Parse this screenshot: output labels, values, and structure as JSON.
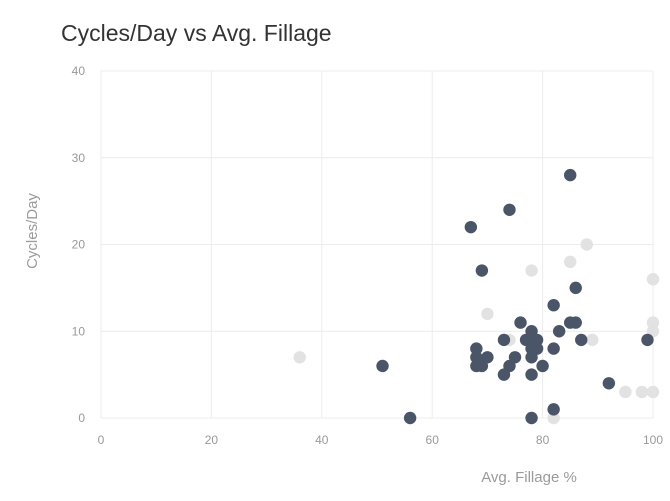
{
  "chart_data": {
    "type": "scatter",
    "title": "Cycles/Day vs Avg. Fillage",
    "xlabel": "Avg. Fillage %",
    "ylabel": "Cycles/Day",
    "xlim": [
      0,
      100
    ],
    "ylim": [
      0,
      40
    ],
    "x_ticks": [
      0,
      20,
      40,
      60,
      80,
      100
    ],
    "y_ticks": [
      0,
      10,
      20,
      30,
      40
    ],
    "grid": true,
    "legend": "none",
    "colors": {
      "dark": "#4a5568",
      "light": "#e2e2e2",
      "grid": "#ececec",
      "text": "#333333"
    },
    "series": [
      {
        "color_key": "light",
        "points": [
          [
            36,
            7
          ],
          [
            70,
            12
          ],
          [
            74,
            9
          ],
          [
            78,
            17
          ],
          [
            82,
            0
          ],
          [
            85,
            18
          ],
          [
            88,
            20
          ],
          [
            89,
            9
          ],
          [
            95,
            3
          ],
          [
            98,
            3
          ],
          [
            100,
            3
          ],
          [
            100,
            10
          ],
          [
            100,
            11
          ],
          [
            100,
            16
          ],
          [
            79,
            8
          ]
        ]
      },
      {
        "color_key": "dark",
        "points": [
          [
            51,
            6
          ],
          [
            56,
            0
          ],
          [
            67,
            22
          ],
          [
            68,
            6
          ],
          [
            68,
            7
          ],
          [
            68,
            8
          ],
          [
            69,
            17
          ],
          [
            69,
            6
          ],
          [
            70,
            7
          ],
          [
            73,
            5
          ],
          [
            73,
            9
          ],
          [
            74,
            6
          ],
          [
            74,
            24
          ],
          [
            75,
            7
          ],
          [
            76,
            11
          ],
          [
            77,
            9
          ],
          [
            78,
            0
          ],
          [
            78,
            5
          ],
          [
            78,
            7
          ],
          [
            78,
            8
          ],
          [
            78,
            10
          ],
          [
            79,
            8
          ],
          [
            79,
            9
          ],
          [
            80,
            6
          ],
          [
            82,
            1
          ],
          [
            82,
            8
          ],
          [
            82,
            13
          ],
          [
            83,
            10
          ],
          [
            85,
            11
          ],
          [
            85,
            28
          ],
          [
            86,
            11
          ],
          [
            86,
            15
          ],
          [
            87,
            9
          ],
          [
            92,
            4
          ],
          [
            99,
            9
          ]
        ]
      }
    ]
  }
}
